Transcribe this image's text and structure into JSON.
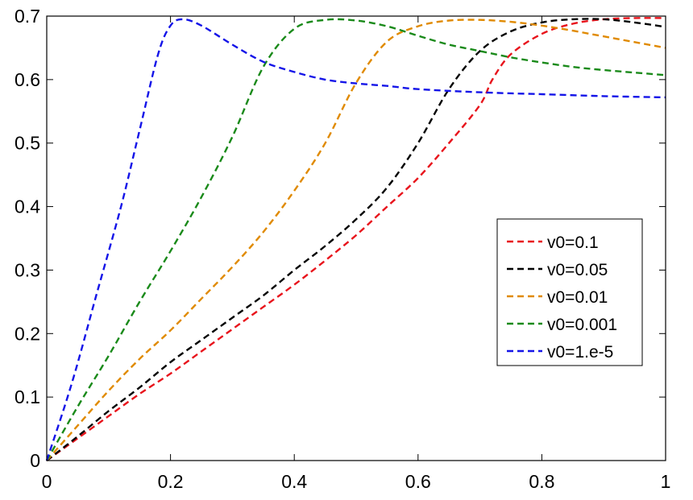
{
  "chart_data": {
    "type": "line",
    "title": "",
    "xlabel": "",
    "ylabel": "",
    "xlim": [
      0,
      1
    ],
    "ylim": [
      0,
      0.7
    ],
    "grid": false,
    "legend_position": "right",
    "x_ticks": [
      "0",
      "0.2",
      "0.4",
      "0.6",
      "0.8",
      "1"
    ],
    "y_ticks": [
      "0",
      "0.1",
      "0.2",
      "0.3",
      "0.4",
      "0.5",
      "0.6",
      "0.7"
    ],
    "series": [
      {
        "name": "v0=0.1",
        "color": "#e8141c",
        "points": [
          [
            0,
            0
          ],
          [
            0.05,
            0.035
          ],
          [
            0.1,
            0.07
          ],
          [
            0.15,
            0.105
          ],
          [
            0.2,
            0.137
          ],
          [
            0.25,
            0.172
          ],
          [
            0.3,
            0.207
          ],
          [
            0.35,
            0.242
          ],
          [
            0.4,
            0.277
          ],
          [
            0.45,
            0.315
          ],
          [
            0.5,
            0.355
          ],
          [
            0.55,
            0.4
          ],
          [
            0.6,
            0.445
          ],
          [
            0.65,
            0.5
          ],
          [
            0.7,
            0.56
          ],
          [
            0.72,
            0.6
          ],
          [
            0.75,
            0.64
          ],
          [
            0.8,
            0.672
          ],
          [
            0.85,
            0.688
          ],
          [
            0.9,
            0.695
          ],
          [
            0.95,
            0.697
          ],
          [
            1,
            0.697
          ]
        ]
      },
      {
        "name": "v0=0.05",
        "color": "#000000",
        "points": [
          [
            0,
            0
          ],
          [
            0.05,
            0.038
          ],
          [
            0.1,
            0.078
          ],
          [
            0.15,
            0.115
          ],
          [
            0.2,
            0.155
          ],
          [
            0.25,
            0.19
          ],
          [
            0.3,
            0.225
          ],
          [
            0.35,
            0.26
          ],
          [
            0.4,
            0.3
          ],
          [
            0.45,
            0.338
          ],
          [
            0.5,
            0.38
          ],
          [
            0.55,
            0.43
          ],
          [
            0.6,
            0.5
          ],
          [
            0.65,
            0.585
          ],
          [
            0.7,
            0.645
          ],
          [
            0.75,
            0.676
          ],
          [
            0.8,
            0.69
          ],
          [
            0.85,
            0.695
          ],
          [
            0.9,
            0.695
          ],
          [
            0.95,
            0.69
          ],
          [
            1,
            0.683
          ]
        ]
      },
      {
        "name": "v0=0.01",
        "color": "#e08a00",
        "points": [
          [
            0,
            0
          ],
          [
            0.05,
            0.055
          ],
          [
            0.1,
            0.11
          ],
          [
            0.15,
            0.16
          ],
          [
            0.2,
            0.205
          ],
          [
            0.25,
            0.255
          ],
          [
            0.3,
            0.305
          ],
          [
            0.35,
            0.36
          ],
          [
            0.4,
            0.425
          ],
          [
            0.45,
            0.5
          ],
          [
            0.5,
            0.595
          ],
          [
            0.55,
            0.66
          ],
          [
            0.6,
            0.684
          ],
          [
            0.65,
            0.693
          ],
          [
            0.7,
            0.694
          ],
          [
            0.75,
            0.691
          ],
          [
            0.8,
            0.685
          ],
          [
            0.85,
            0.677
          ],
          [
            0.9,
            0.668
          ],
          [
            0.95,
            0.659
          ],
          [
            1,
            0.65
          ]
        ]
      },
      {
        "name": "v0=0.001",
        "color": "#1a8a1a",
        "points": [
          [
            0,
            0
          ],
          [
            0.05,
            0.085
          ],
          [
            0.1,
            0.165
          ],
          [
            0.15,
            0.25
          ],
          [
            0.2,
            0.33
          ],
          [
            0.25,
            0.415
          ],
          [
            0.3,
            0.51
          ],
          [
            0.35,
            0.62
          ],
          [
            0.4,
            0.68
          ],
          [
            0.45,
            0.694
          ],
          [
            0.5,
            0.693
          ],
          [
            0.55,
            0.684
          ],
          [
            0.6,
            0.669
          ],
          [
            0.65,
            0.655
          ],
          [
            0.7,
            0.645
          ],
          [
            0.75,
            0.635
          ],
          [
            0.8,
            0.627
          ],
          [
            0.85,
            0.62
          ],
          [
            0.9,
            0.615
          ],
          [
            0.95,
            0.611
          ],
          [
            1,
            0.607
          ]
        ]
      },
      {
        "name": "v0=1.e-5",
        "color": "#1414e8",
        "points": [
          [
            0,
            0
          ],
          [
            0.04,
            0.12
          ],
          [
            0.08,
            0.26
          ],
          [
            0.12,
            0.4
          ],
          [
            0.15,
            0.52
          ],
          [
            0.18,
            0.64
          ],
          [
            0.2,
            0.685
          ],
          [
            0.22,
            0.695
          ],
          [
            0.25,
            0.685
          ],
          [
            0.3,
            0.655
          ],
          [
            0.35,
            0.628
          ],
          [
            0.4,
            0.612
          ],
          [
            0.45,
            0.6
          ],
          [
            0.5,
            0.594
          ],
          [
            0.55,
            0.59
          ],
          [
            0.6,
            0.585
          ],
          [
            0.7,
            0.58
          ],
          [
            0.8,
            0.577
          ],
          [
            0.9,
            0.574
          ],
          [
            1,
            0.572
          ]
        ]
      }
    ]
  }
}
